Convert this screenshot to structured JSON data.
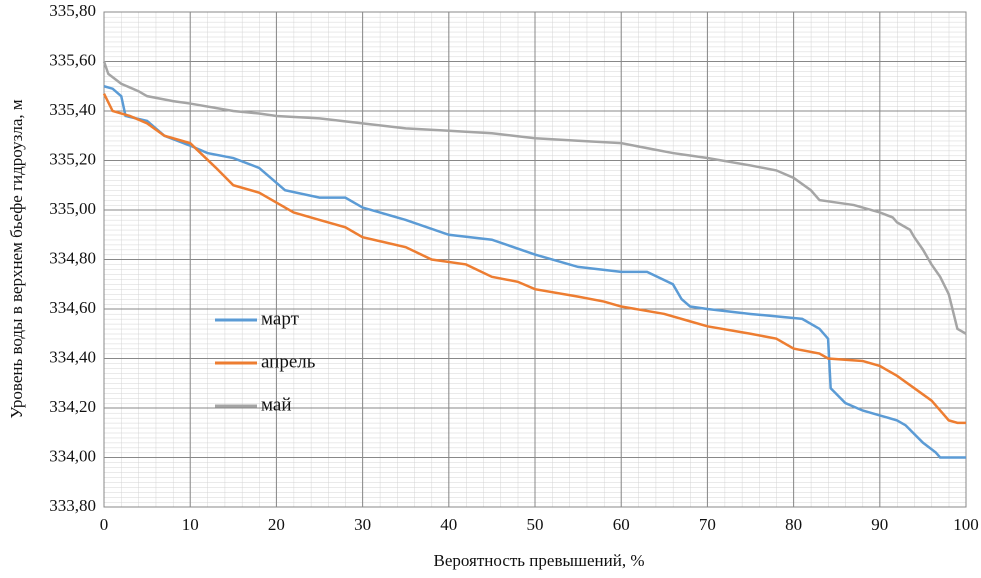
{
  "chart_data": {
    "type": "line",
    "xlabel": "Вероятность превышений, %",
    "ylabel": "Уровень воды  в верхнем бьефе гидроузла, м",
    "xlim": [
      0,
      100
    ],
    "xticks": [
      0,
      10,
      20,
      30,
      40,
      50,
      60,
      70,
      80,
      90,
      100
    ],
    "ylim": [
      333.8,
      335.8
    ],
    "yticks": [
      {
        "value": 333.8,
        "label": "333,80"
      },
      {
        "value": 334.0,
        "label": "334,00"
      },
      {
        "value": 334.2,
        "label": "334,20"
      },
      {
        "value": 334.4,
        "label": "334,40"
      },
      {
        "value": 334.6,
        "label": "334,60"
      },
      {
        "value": 334.8,
        "label": "334,80"
      },
      {
        "value": 335.0,
        "label": "335,00"
      },
      {
        "value": 335.2,
        "label": "335,20"
      },
      {
        "value": 335.4,
        "label": "335,40"
      },
      {
        "value": 335.6,
        "label": "335,60"
      },
      {
        "value": 335.8,
        "label": "335,80"
      }
    ],
    "grid": true,
    "legend": "left",
    "series": [
      {
        "name": "март",
        "color": "#5b9bd5",
        "x": [
          0,
          1,
          2,
          2.5,
          5,
          7,
          10,
          12,
          15,
          18,
          21,
          25,
          28,
          30,
          35,
          40,
          45,
          50,
          55,
          60,
          63,
          66,
          67,
          68,
          70,
          75,
          78,
          81,
          83,
          84,
          84.3,
          86,
          88,
          90,
          92,
          93,
          95,
          96.5,
          97,
          100
        ],
        "values": [
          335.5,
          335.49,
          335.46,
          335.38,
          335.36,
          335.3,
          335.26,
          335.23,
          335.21,
          335.17,
          335.08,
          335.05,
          335.05,
          335.01,
          334.96,
          334.9,
          334.88,
          334.82,
          334.77,
          334.75,
          334.75,
          334.7,
          334.64,
          334.61,
          334.6,
          334.58,
          334.57,
          334.56,
          334.52,
          334.48,
          334.28,
          334.22,
          334.19,
          334.17,
          334.15,
          334.13,
          334.06,
          334.02,
          334.0,
          334.0
        ]
      },
      {
        "name": "апрель",
        "color": "#ed7d31",
        "x": [
          0,
          1,
          3,
          5,
          7,
          10,
          11.5,
          13,
          15,
          18,
          20,
          22,
          25,
          28,
          30,
          35,
          38,
          42,
          45,
          48,
          50,
          55,
          58,
          60,
          65,
          68,
          70,
          75,
          78,
          80,
          83,
          84,
          88,
          90,
          92,
          94,
          96,
          97,
          98,
          99,
          100
        ],
        "values": [
          335.47,
          335.4,
          335.38,
          335.35,
          335.3,
          335.27,
          335.22,
          335.17,
          335.1,
          335.07,
          335.03,
          334.99,
          334.96,
          334.93,
          334.89,
          334.85,
          334.8,
          334.78,
          334.73,
          334.71,
          334.68,
          334.65,
          334.63,
          334.61,
          334.58,
          334.55,
          334.53,
          334.5,
          334.48,
          334.44,
          334.42,
          334.4,
          334.39,
          334.37,
          334.33,
          334.28,
          334.23,
          334.19,
          334.15,
          334.14,
          334.14
        ]
      },
      {
        "name": "май",
        "color": "#a5a5a5",
        "x": [
          0,
          0.5,
          2,
          4,
          5,
          8,
          10,
          15,
          18,
          20,
          25,
          30,
          35,
          40,
          45,
          50,
          55,
          60,
          63,
          66,
          70,
          75,
          78,
          80,
          82,
          83,
          85,
          87,
          90,
          91.5,
          92,
          93.5,
          94,
          95,
          96,
          97,
          98,
          99,
          100
        ],
        "values": [
          335.6,
          335.55,
          335.51,
          335.48,
          335.46,
          335.44,
          335.43,
          335.4,
          335.39,
          335.38,
          335.37,
          335.35,
          335.33,
          335.32,
          335.31,
          335.29,
          335.28,
          335.27,
          335.25,
          335.23,
          335.21,
          335.18,
          335.16,
          335.13,
          335.08,
          335.04,
          335.03,
          335.02,
          334.99,
          334.97,
          334.95,
          334.92,
          334.89,
          334.84,
          334.78,
          334.73,
          334.66,
          334.52,
          334.5
        ]
      }
    ]
  }
}
